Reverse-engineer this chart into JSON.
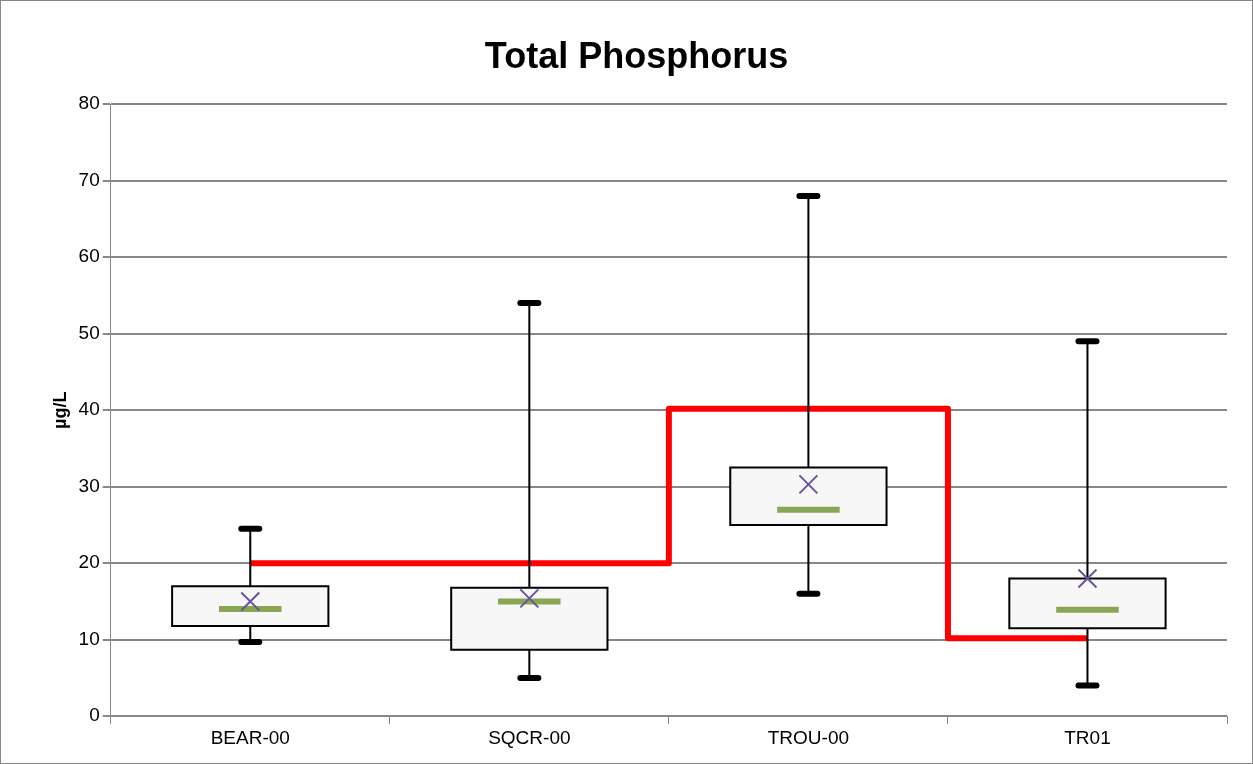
{
  "chart_data": {
    "type": "box",
    "title": "Total Phosphorus",
    "ylabel": "µg/L",
    "categories": [
      "BEAR-00",
      "SQCR-00",
      "TROU-00",
      "TR01"
    ],
    "series": [
      {
        "color": "#f7f7f7",
        "boxes": [
          {
            "low": 9.7,
            "q1": 11.8,
            "median": 14,
            "q3": 17,
            "high": 24.5,
            "mean": 15
          },
          {
            "low": 5,
            "q1": 8.7,
            "median": 15,
            "q3": 16.8,
            "high": 54,
            "mean": 15.4
          },
          {
            "low": 16,
            "q1": 25,
            "median": 27,
            "q3": 32.5,
            "high": 68,
            "mean": 30.3
          },
          {
            "low": 4,
            "q1": 11.5,
            "median": 13.9,
            "q3": 18,
            "high": 49,
            "mean": 18
          }
        ]
      },
      {
        "type": "step",
        "color": "#ff0000",
        "values": [
          20,
          20,
          40.2,
          10.2
        ]
      }
    ],
    "ylim": [
      0,
      80
    ],
    "yticks": [
      0,
      10,
      20,
      30,
      40,
      50,
      60,
      70,
      80
    ],
    "grid": "y",
    "legend": false
  }
}
